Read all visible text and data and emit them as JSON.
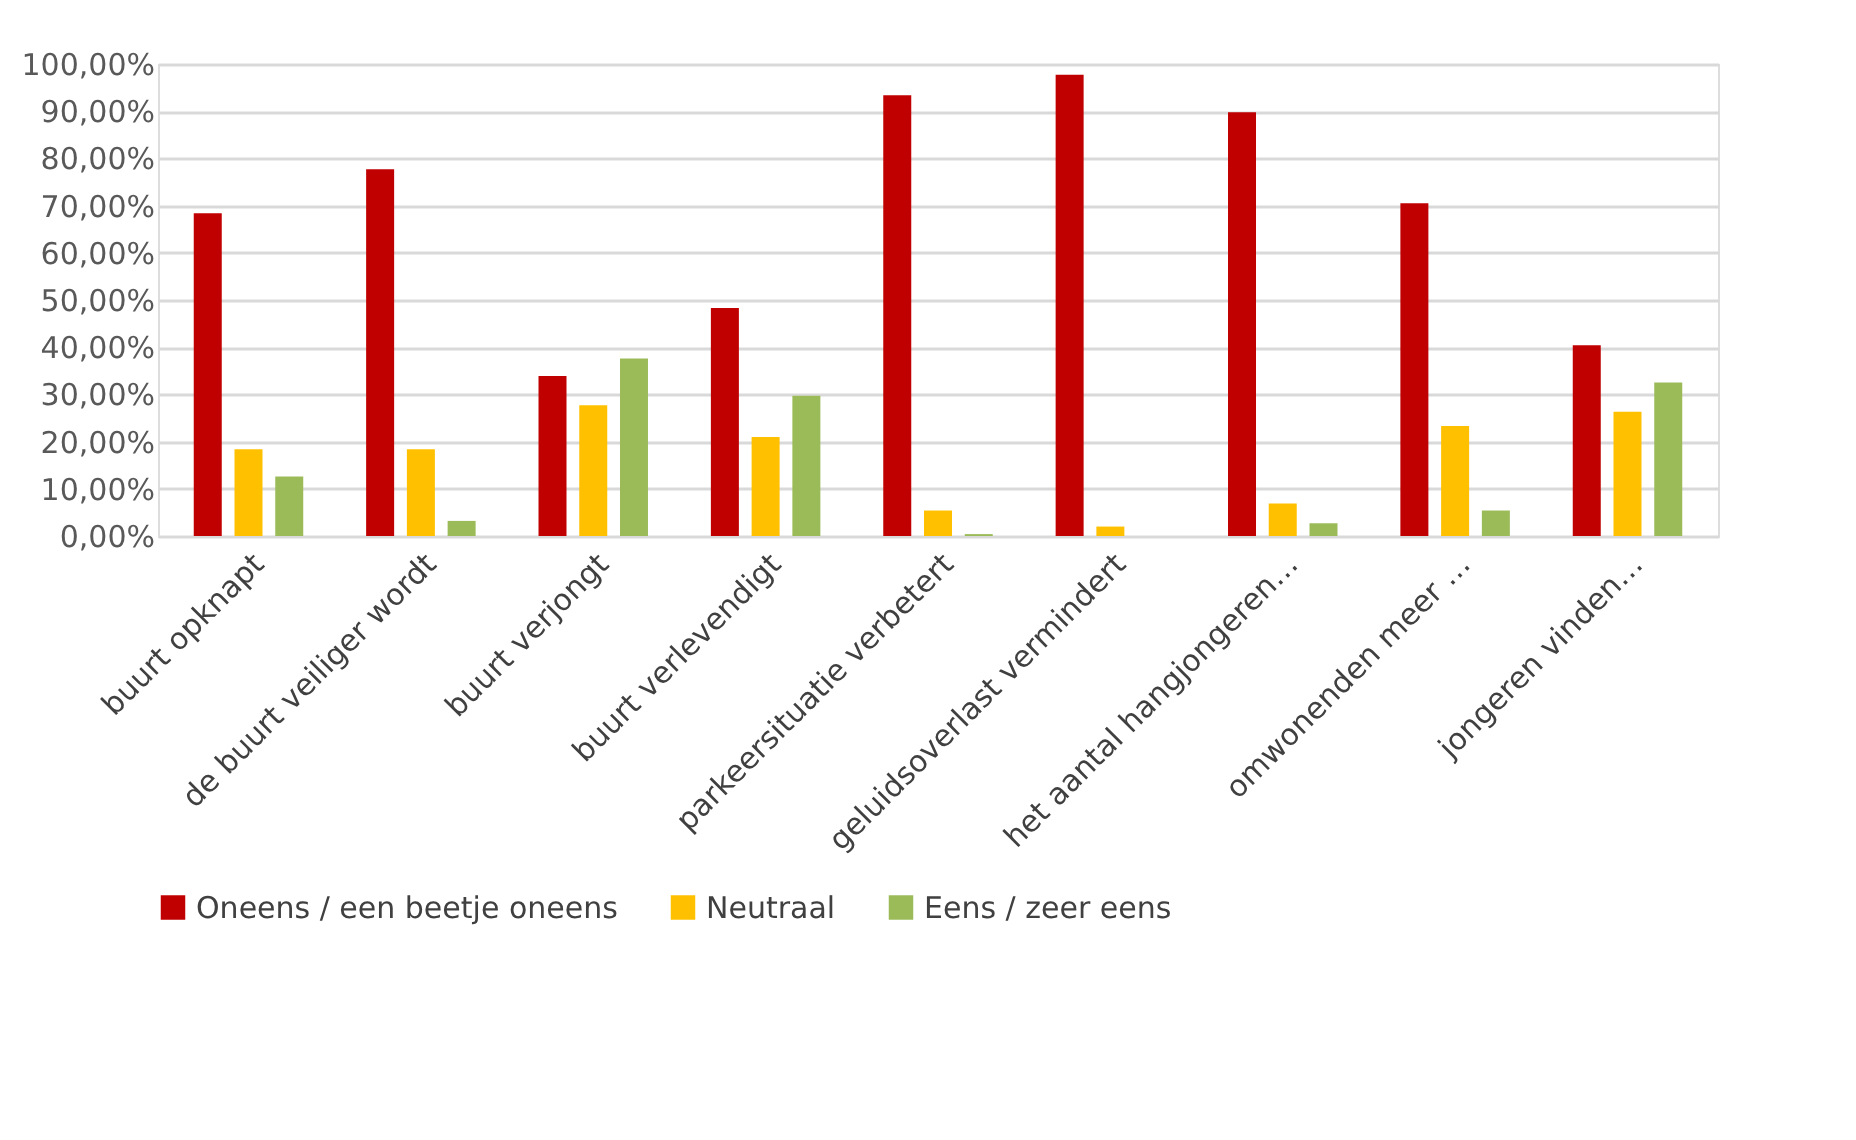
{
  "chart_data": {
    "type": "bar",
    "categories": [
      "buurt opknapt",
      "de buurt veiliger wordt",
      "buurt verjongt",
      "buurt verlevendigt",
      "parkeersituatie verbetert",
      "geluidsoverlast vermindert",
      "het aantal hangjongeren…",
      "omwonenden meer …",
      "jongeren vinden…"
    ],
    "series": [
      {
        "name": "Oneens / een beetje oneens",
        "color": "#c00000",
        "values": [
          68.4,
          77.7,
          33.9,
          48.3,
          93.4,
          97.7,
          89.8,
          70.5,
          40.4
        ]
      },
      {
        "name": "Neutraal",
        "color": "#ffc000",
        "values": [
          18.4,
          18.4,
          27.7,
          21.0,
          5.4,
          2.0,
          6.9,
          23.3,
          26.3
        ]
      },
      {
        "name": "Eens / zeer eens",
        "color": "#9bbb59",
        "values": [
          12.6,
          3.2,
          37.6,
          29.7,
          0.4,
          0,
          2.7,
          5.4,
          32.5
        ]
      }
    ],
    "ylim": [
      0,
      100
    ],
    "yticks": [
      {
        "value": 0,
        "label": "0,00%"
      },
      {
        "value": 10,
        "label": "10,00%"
      },
      {
        "value": 20,
        "label": "20,00%"
      },
      {
        "value": 30,
        "label": "30,00%"
      },
      {
        "value": 40,
        "label": "40,00%"
      },
      {
        "value": 50,
        "label": "50,00%"
      },
      {
        "value": 60,
        "label": "60,00%"
      },
      {
        "value": 70,
        "label": "70,00%"
      },
      {
        "value": 80,
        "label": "80,00%"
      },
      {
        "value": 90,
        "label": "90,00%"
      },
      {
        "value": 100,
        "label": "100,00%"
      }
    ],
    "grid": "y",
    "legend": "bottom"
  }
}
